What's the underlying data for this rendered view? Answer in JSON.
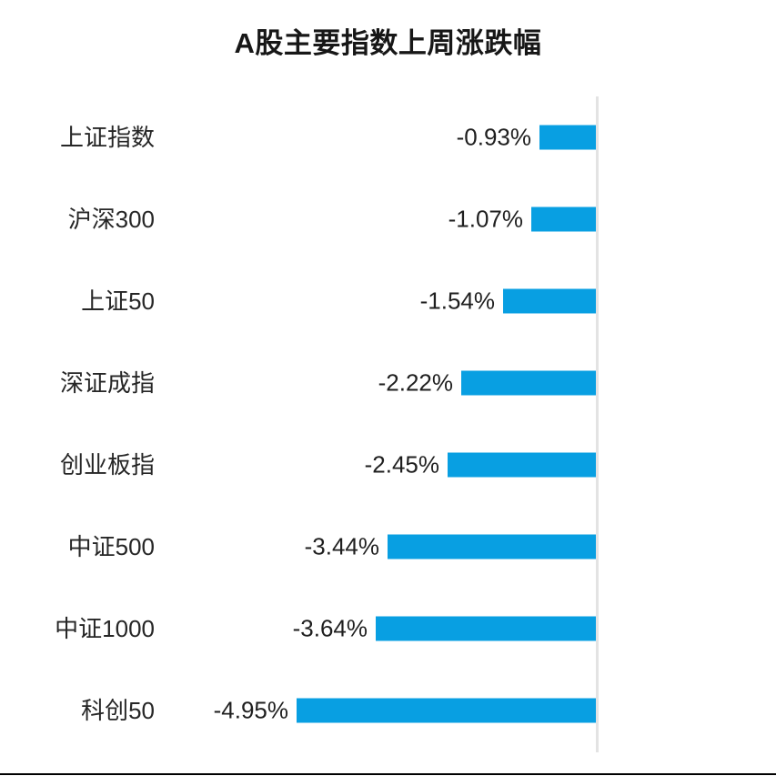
{
  "chart": {
    "bar_color": "#089fe2",
    "axis_color": "#e3e3e3",
    "title_color": "#171717",
    "label_color": "#262626",
    "value_color": "#1f1f1f"
  },
  "chart_data": {
    "type": "bar",
    "orientation": "horizontal",
    "title": "A股主要指数上周涨跌幅",
    "categories": [
      "上证指数",
      "沪深300",
      "上证50",
      "深证成指",
      "创业板指",
      "中证500",
      "中证1000",
      "科创50"
    ],
    "values": [
      -0.93,
      -1.07,
      -1.54,
      -2.22,
      -2.45,
      -3.44,
      -3.64,
      -4.95
    ],
    "labels": [
      "-0.93%",
      "-1.07%",
      "-1.54%",
      "-2.22%",
      "-2.45%",
      "-3.44%",
      "-3.64%",
      "-4.95%"
    ],
    "xlabel": "",
    "ylabel": "",
    "xlim": [
      -5,
      0
    ],
    "baseline": "right",
    "grid": false,
    "legend": false,
    "value_labels_position": "left-of-bar",
    "sorted": "descending-by-value"
  }
}
